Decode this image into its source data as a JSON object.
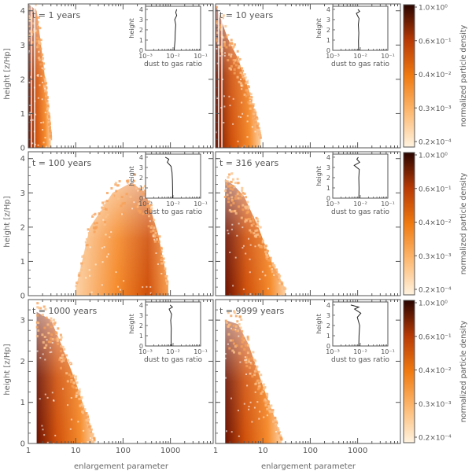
{
  "figure": {
    "shared_x_label": "enlargement parameter",
    "shared_y_label": "height [z/Hp]",
    "colorbar_label": "normalized particle density",
    "colorbar_ticks": [
      "1.0×10⁰",
      "0.6×10⁻¹",
      "0.4×10⁻²",
      "0.3×10⁻³",
      "0.2×10⁻⁴"
    ],
    "inset_x_label": "dust to gas ratio",
    "inset_y_label": "height",
    "inset_x_ticks": [
      "10⁻³",
      "10⁻²",
      "10⁻¹"
    ],
    "inset_y_ticks": [
      "0",
      "1",
      "2",
      "3",
      "4"
    ],
    "x_tick_labels": [
      "1",
      "10",
      "100",
      "1000"
    ]
  },
  "chart_data": [
    {
      "type": "heatmap",
      "title": "t = 1 years",
      "xscale": "log",
      "xlim": [
        1,
        8000
      ],
      "ylim": [
        0,
        4.2
      ],
      "yticks": [
        "0",
        "1",
        "2",
        "3",
        "4"
      ],
      "density_profile": [
        [
          1.0,
          4.2
        ],
        [
          1.5,
          4.0
        ],
        [
          2.1,
          2.4
        ],
        [
          2.7,
          1.0
        ],
        [
          3.0,
          0.3
        ]
      ],
      "inset": {
        "x": [
          0.0135,
          0.0125,
          0.0135,
          0.0115,
          0.0125,
          0.012,
          0.0118,
          0.011
        ],
        "y": [
          4.0,
          3.7,
          3.4,
          3.0,
          2.5,
          1.8,
          1.0,
          0.0
        ]
      }
    },
    {
      "type": "heatmap",
      "title": "t = 10 years",
      "xscale": "log",
      "xlim": [
        1,
        8000
      ],
      "ylim": [
        0,
        4.2
      ],
      "yticks": [
        "0",
        "1",
        "2",
        "3",
        "4"
      ],
      "density_profile": [
        [
          1.0,
          4.2
        ],
        [
          1.8,
          3.2
        ],
        [
          3.0,
          2.6
        ],
        [
          5.0,
          1.7
        ],
        [
          7.5,
          0.8
        ],
        [
          9.0,
          0.3
        ]
      ],
      "inset": {
        "x": [
          0.0082,
          0.0095,
          0.0072,
          0.009,
          0.0085,
          0.0088,
          0.0086,
          0.0087
        ],
        "y": [
          4.0,
          3.8,
          3.6,
          3.1,
          2.5,
          1.7,
          0.9,
          0.0
        ]
      }
    },
    {
      "type": "heatmap",
      "title": "t = 100 years",
      "xscale": "log",
      "xlim": [
        1,
        8000
      ],
      "ylim": [
        0,
        4.2
      ],
      "yticks": [
        "0",
        "1",
        "2",
        "3",
        "4"
      ],
      "density_profile": [
        [
          10,
          0.2
        ],
        [
          20,
          2.0
        ],
        [
          60,
          3.0
        ],
        [
          150,
          3.3
        ],
        [
          300,
          3.0
        ],
        [
          550,
          1.8
        ],
        [
          900,
          0.3
        ]
      ],
      "inset": {
        "x": [
          0.0052,
          0.007,
          0.0062,
          0.0085,
          0.0092,
          0.0095,
          0.0096,
          0.0097
        ],
        "y": [
          4.0,
          3.8,
          3.5,
          3.1,
          2.5,
          1.7,
          0.9,
          0.0
        ]
      }
    },
    {
      "type": "heatmap",
      "title": "t = 316 years",
      "xscale": "log",
      "xlim": [
        1,
        8000
      ],
      "ylim": [
        0,
        4.2
      ],
      "yticks": [
        "0",
        "1",
        "2",
        "3",
        "4"
      ],
      "density_profile": [
        [
          1.6,
          3.4
        ],
        [
          2.5,
          3.2
        ],
        [
          4.0,
          2.9
        ],
        [
          8.0,
          2.0
        ],
        [
          15,
          1.0
        ],
        [
          30,
          0.2
        ]
      ],
      "inset": {
        "x": [
          0.0085,
          0.0075,
          0.0095,
          0.006,
          0.0092,
          0.0088,
          0.009,
          0.0089
        ],
        "y": [
          4.0,
          3.8,
          3.5,
          3.2,
          2.8,
          2.0,
          1.0,
          0.0
        ]
      }
    },
    {
      "type": "heatmap",
      "title": "t = 1000 years",
      "xscale": "log",
      "xlim": [
        1,
        8000
      ],
      "ylim": [
        0,
        3.5
      ],
      "yticks": [
        "0",
        "1",
        "2",
        "3"
      ],
      "density_profile": [
        [
          1.5,
          3.2
        ],
        [
          3.0,
          3.0
        ],
        [
          5.0,
          2.4
        ],
        [
          10,
          1.5
        ],
        [
          18,
          0.6
        ],
        [
          25,
          0.1
        ]
      ],
      "inset": {
        "x": [
          0.0078,
          0.0095,
          0.0072,
          0.0088,
          0.0082,
          0.0086,
          0.0085,
          0.0085
        ],
        "y": [
          4.0,
          3.8,
          3.6,
          3.1,
          2.5,
          1.7,
          0.9,
          0.0
        ]
      }
    },
    {
      "type": "heatmap",
      "title": "t = 9999 years",
      "xscale": "log",
      "xlim": [
        1,
        8000
      ],
      "ylim": [
        0,
        3.5
      ],
      "yticks": [
        "0",
        "1",
        "2",
        "3"
      ],
      "density_profile": [
        [
          1.6,
          3.0
        ],
        [
          3.0,
          2.9
        ],
        [
          5.0,
          2.4
        ],
        [
          10,
          1.4
        ],
        [
          18,
          0.6
        ],
        [
          25,
          0.1
        ]
      ],
      "inset": {
        "x": [
          0.0045,
          0.0088,
          0.0062,
          0.0105,
          0.0078,
          0.0095,
          0.009,
          0.0088
        ],
        "y": [
          4.0,
          3.8,
          3.6,
          3.2,
          2.8,
          2.0,
          1.0,
          0.0
        ]
      }
    }
  ]
}
